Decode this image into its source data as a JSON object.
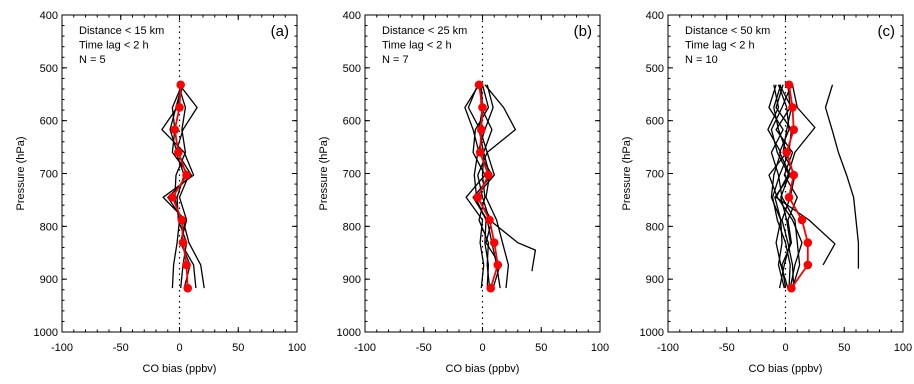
{
  "chart_data": [
    {
      "type": "line",
      "panel_label": "(a)",
      "annotations": [
        "Distance < 15 km",
        "Time lag < 2 h",
        "N = 5"
      ],
      "xlabel": "CO bias (ppbv)",
      "ylabel": "Pressure (hPa)",
      "xlim": [
        -100,
        100
      ],
      "ylim": [
        1000,
        400
      ],
      "y_inverted": true,
      "x_ticks": [
        "-100",
        "-50",
        "0",
        "50",
        "100"
      ],
      "y_ticks": [
        "400",
        "500",
        "600",
        "700",
        "800",
        "900",
        "1000"
      ],
      "reference_line": {
        "x": 0,
        "style": "dotted"
      },
      "mean_profile": {
        "color": "#ff0000",
        "points": [
          [
            1,
            532
          ],
          [
            0,
            575
          ],
          [
            -4,
            617
          ],
          [
            -1,
            660
          ],
          [
            6,
            703
          ],
          [
            -6,
            745
          ],
          [
            2,
            788
          ],
          [
            3,
            831
          ],
          [
            6,
            873
          ],
          [
            7,
            917
          ]
        ]
      },
      "individual_profiles": [
        {
          "points": [
            [
              2,
              532
            ],
            [
              -3,
              575
            ],
            [
              -8,
              617
            ],
            [
              -2,
              660
            ],
            [
              10,
              703
            ],
            [
              -10,
              745
            ],
            [
              3,
              788
            ],
            [
              8,
              831
            ],
            [
              18,
              873
            ],
            [
              21,
              917
            ]
          ]
        },
        {
          "points": [
            [
              -1,
              532
            ],
            [
              5,
              575
            ],
            [
              2,
              617
            ],
            [
              5,
              660
            ],
            [
              -3,
              703
            ],
            [
              -4,
              745
            ],
            [
              0,
              788
            ],
            [
              -2,
              831
            ],
            [
              -5,
              873
            ],
            [
              -6,
              917
            ]
          ]
        },
        {
          "points": [
            [
              3,
              532
            ],
            [
              -2,
              575
            ],
            [
              -15,
              617
            ],
            [
              4,
              660
            ],
            [
              12,
              703
            ],
            [
              -14,
              745
            ],
            [
              5,
              788
            ],
            [
              1,
              831
            ],
            [
              12,
              873
            ],
            [
              14,
              917
            ]
          ]
        },
        {
          "points": [
            [
              0,
              532
            ],
            [
              15,
              575
            ],
            [
              3,
              617
            ],
            [
              -3,
              660
            ],
            [
              4,
              703
            ],
            [
              -2,
              745
            ],
            [
              -1,
              788
            ],
            [
              6,
              831
            ],
            [
              3,
              873
            ],
            [
              1,
              917
            ]
          ]
        },
        {
          "points": [
            [
              2,
              532
            ],
            [
              -6,
              575
            ],
            [
              -4,
              617
            ],
            [
              -6,
              660
            ],
            [
              8,
              703
            ],
            [
              0,
              745
            ],
            [
              6,
              788
            ],
            [
              1,
              831
            ],
            [
              9,
              873
            ],
            [
              4,
              917
            ]
          ]
        }
      ]
    },
    {
      "type": "line",
      "panel_label": "(b)",
      "annotations": [
        "Distance < 25 km",
        "Time lag < 2 h",
        "N = 7"
      ],
      "xlabel": "CO bias (ppbv)",
      "ylabel": "Pressure (hPa)",
      "xlim": [
        -100,
        100
      ],
      "ylim": [
        1000,
        400
      ],
      "y_inverted": true,
      "x_ticks": [
        "-100",
        "-50",
        "0",
        "50",
        "100"
      ],
      "y_ticks": [
        "400",
        "500",
        "600",
        "700",
        "800",
        "900",
        "1000"
      ],
      "reference_line": {
        "x": 0,
        "style": "dotted"
      },
      "mean_profile": {
        "color": "#ff0000",
        "points": [
          [
            -3,
            532
          ],
          [
            0,
            575
          ],
          [
            -1,
            617
          ],
          [
            -2,
            660
          ],
          [
            5,
            703
          ],
          [
            -4,
            745
          ],
          [
            6,
            788
          ],
          [
            10,
            831
          ],
          [
            13,
            873
          ],
          [
            7,
            917
          ]
        ]
      },
      "individual_profiles": [
        {
          "points": [
            [
              -3,
              532
            ],
            [
              -15,
              575
            ],
            [
              -8,
              617
            ],
            [
              -3,
              660
            ],
            [
              8,
              703
            ],
            [
              -8,
              745
            ],
            [
              4,
              788
            ],
            [
              8,
              831
            ],
            [
              12,
              873
            ],
            [
              15,
              917
            ]
          ]
        },
        {
          "points": [
            [
              2,
              532
            ],
            [
              18,
              575
            ],
            [
              28,
              617
            ],
            [
              4,
              660
            ],
            [
              -4,
              703
            ],
            [
              0,
              745
            ],
            [
              6,
              788
            ],
            [
              30,
              831
            ],
            [
              45,
              845
            ],
            [
              42,
              885
            ]
          ]
        },
        {
          "points": [
            [
              -4,
              532
            ],
            [
              -12,
              575
            ],
            [
              -2,
              617
            ],
            [
              4,
              660
            ],
            [
              10,
              703
            ],
            [
              -6,
              745
            ],
            [
              3,
              788
            ],
            [
              2,
              831
            ],
            [
              5,
              873
            ],
            [
              4,
              917
            ]
          ]
        },
        {
          "points": [
            [
              0,
              532
            ],
            [
              5,
              575
            ],
            [
              -6,
              617
            ],
            [
              -8,
              660
            ],
            [
              2,
              703
            ],
            [
              -14,
              745
            ],
            [
              0,
              788
            ],
            [
              -2,
              831
            ],
            [
              1,
              873
            ],
            [
              -1,
              917
            ]
          ]
        },
        {
          "points": [
            [
              -2,
              532
            ],
            [
              -1,
              575
            ],
            [
              8,
              617
            ],
            [
              1,
              660
            ],
            [
              6,
              703
            ],
            [
              3,
              745
            ],
            [
              12,
              788
            ],
            [
              17,
              831
            ],
            [
              22,
              873
            ],
            [
              20,
              917
            ]
          ]
        },
        {
          "points": [
            [
              4,
              532
            ],
            [
              9,
              575
            ],
            [
              2,
              617
            ],
            [
              -4,
              660
            ],
            [
              -7,
              703
            ],
            [
              -5,
              745
            ],
            [
              8,
              788
            ],
            [
              3,
              831
            ],
            [
              15,
              873
            ],
            [
              9,
              917
            ]
          ]
        },
        {
          "points": [
            [
              -1,
              532
            ],
            [
              0,
              575
            ],
            [
              -3,
              617
            ],
            [
              1,
              660
            ],
            [
              0,
              703
            ],
            [
              2,
              745
            ],
            [
              -3,
              788
            ],
            [
              5,
              831
            ],
            [
              4,
              873
            ],
            [
              6,
              917
            ]
          ]
        }
      ]
    },
    {
      "type": "line",
      "panel_label": "(c)",
      "annotations": [
        "Distance < 50 km",
        "Time lag < 2 h",
        "N = 10"
      ],
      "xlabel": "CO bias (ppbv)",
      "ylabel": "Pressure (hPa)",
      "xlim": [
        -100,
        100
      ],
      "ylim": [
        1000,
        400
      ],
      "y_inverted": true,
      "x_ticks": [
        "-100",
        "-50",
        "0",
        "50",
        "100"
      ],
      "y_ticks": [
        "400",
        "500",
        "600",
        "700",
        "800",
        "900",
        "1000"
      ],
      "reference_line": {
        "x": 0,
        "style": "dotted"
      },
      "mean_profile": {
        "color": "#ff0000",
        "points": [
          [
            3,
            532
          ],
          [
            6,
            575
          ],
          [
            7,
            617
          ],
          [
            1,
            660
          ],
          [
            7,
            703
          ],
          [
            3,
            745
          ],
          [
            14,
            788
          ],
          [
            19,
            831
          ],
          [
            19,
            873
          ],
          [
            5,
            917
          ]
        ]
      },
      "individual_profiles": [
        {
          "points": [
            [
              -10,
              532
            ],
            [
              -6,
              575
            ],
            [
              -15,
              617
            ],
            [
              -4,
              660
            ],
            [
              -10,
              703
            ],
            [
              -12,
              745
            ],
            [
              -4,
              788
            ],
            [
              -3,
              831
            ],
            [
              -6,
              873
            ],
            [
              -1,
              917
            ]
          ]
        },
        {
          "points": [
            [
              6,
              532
            ],
            [
              10,
              575
            ],
            [
              25,
              613
            ],
            [
              8,
              660
            ],
            [
              2,
              703
            ],
            [
              -8,
              745
            ],
            [
              20,
              788
            ],
            [
              42,
              833
            ],
            [
              32,
              873
            ]
          ]
        },
        {
          "points": [
            [
              40,
              532
            ],
            [
              34,
              575
            ],
            [
              40,
              620
            ],
            [
              45,
              660
            ],
            [
              52,
              703
            ],
            [
              58,
              745
            ],
            [
              60,
              788
            ],
            [
              62,
              831
            ],
            [
              62,
              880
            ]
          ]
        },
        {
          "points": [
            [
              -8,
              532
            ],
            [
              -14,
              575
            ],
            [
              -2,
              617
            ],
            [
              -12,
              660
            ],
            [
              -6,
              703
            ],
            [
              -3,
              745
            ],
            [
              8,
              788
            ],
            [
              10,
              831
            ],
            [
              12,
              873
            ],
            [
              6,
              917
            ]
          ]
        },
        {
          "points": [
            [
              2,
              532
            ],
            [
              4,
              575
            ],
            [
              -8,
              617
            ],
            [
              6,
              660
            ],
            [
              -1,
              703
            ],
            [
              10,
              745
            ],
            [
              2,
              788
            ],
            [
              5,
              831
            ],
            [
              -3,
              873
            ],
            [
              0,
              917
            ]
          ]
        },
        {
          "points": [
            [
              -6,
              532
            ],
            [
              1,
              575
            ],
            [
              3,
              617
            ],
            [
              -5,
              660
            ],
            [
              4,
              703
            ],
            [
              -9,
              745
            ],
            [
              -4,
              788
            ],
            [
              -8,
              831
            ],
            [
              -4,
              873
            ],
            [
              2,
              917
            ]
          ]
        },
        {
          "points": [
            [
              -4,
              532
            ],
            [
              -10,
              575
            ],
            [
              -6,
              617
            ],
            [
              1,
              660
            ],
            [
              -14,
              703
            ],
            [
              -7,
              745
            ],
            [
              6,
              788
            ],
            [
              14,
              831
            ],
            [
              8,
              873
            ],
            [
              4,
              917
            ]
          ]
        },
        {
          "points": [
            [
              5,
              532
            ],
            [
              -3,
              575
            ],
            [
              -12,
              617
            ],
            [
              -7,
              660
            ],
            [
              3,
              703
            ],
            [
              -4,
              745
            ],
            [
              1,
              788
            ],
            [
              4,
              831
            ],
            [
              -1,
              873
            ],
            [
              -5,
              917
            ]
          ]
        },
        {
          "points": [
            [
              -5,
              532
            ],
            [
              5,
              575
            ],
            [
              1,
              617
            ],
            [
              -2,
              660
            ],
            [
              8,
              703
            ],
            [
              4,
              745
            ],
            [
              -3,
              788
            ],
            [
              2,
              831
            ],
            [
              6,
              873
            ],
            [
              7,
              917
            ]
          ]
        },
        {
          "points": [
            [
              -2,
              532
            ],
            [
              -8,
              575
            ],
            [
              5,
              617
            ],
            [
              3,
              660
            ],
            [
              -5,
              703
            ],
            [
              -11,
              745
            ],
            [
              -7,
              788
            ],
            [
              0,
              831
            ],
            [
              4,
              873
            ],
            [
              3,
              917
            ]
          ]
        }
      ]
    }
  ]
}
